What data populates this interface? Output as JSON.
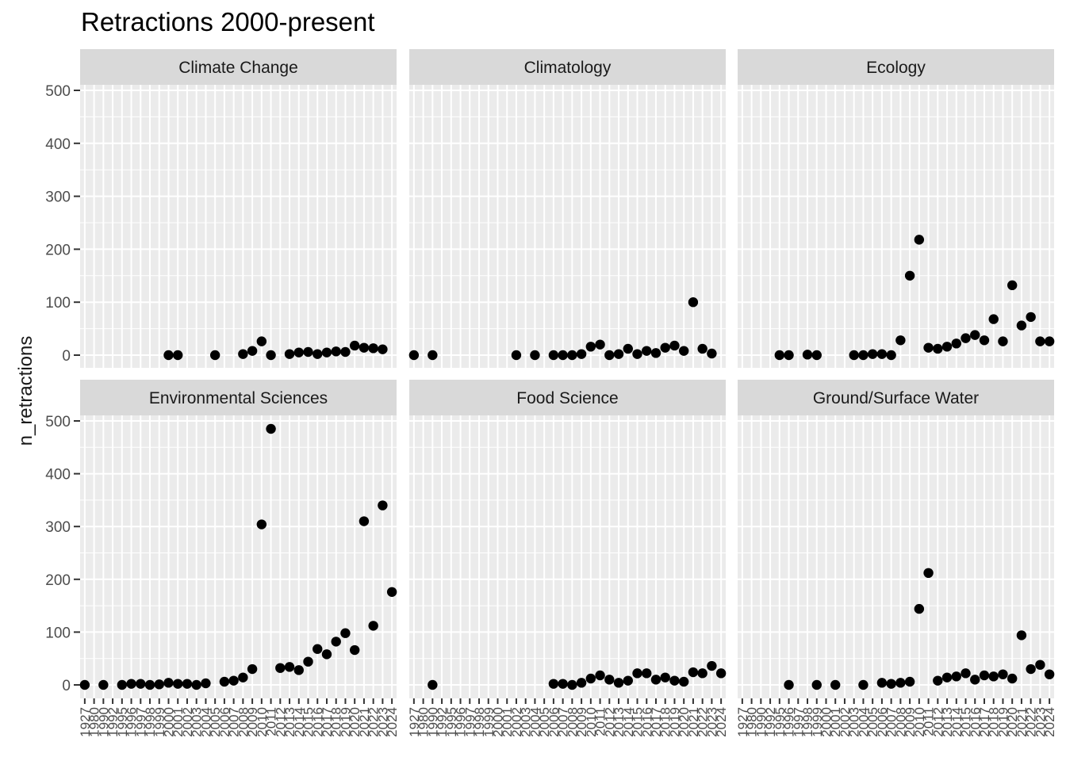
{
  "chart_data": {
    "type": "scatter",
    "title": "Retractions 2000-present",
    "ylabel": "n_retractions",
    "xlabel": "",
    "ylim": [
      0,
      500
    ],
    "y_ticks": [
      0,
      100,
      200,
      300,
      400,
      500
    ],
    "x_categories": [
      "1927",
      "1980",
      "1990",
      "1992",
      "1995",
      "1996",
      "1997",
      "1998",
      "1999",
      "2000",
      "2001",
      "2002",
      "2003",
      "2004",
      "2005",
      "2006",
      "2007",
      "2008",
      "2009",
      "2010",
      "2011",
      "2012",
      "2013",
      "2014",
      "2015",
      "2016",
      "2017",
      "2018",
      "2019",
      "2020",
      "2021",
      "2022",
      "2023",
      "2024"
    ],
    "grid": true,
    "point_color": "#000000",
    "panel_background": "#ebebeb",
    "strip_background": "#d9d9d9",
    "panels": [
      {
        "name": "Climate Change",
        "x": [
          "2000",
          "2001",
          "2005",
          "2008",
          "2009",
          "2010",
          "2011",
          "2013",
          "2014",
          "2015",
          "2016",
          "2017",
          "2018",
          "2019",
          "2020",
          "2021",
          "2022",
          "2023"
        ],
        "y": [
          0,
          0,
          0,
          2,
          8,
          26,
          0,
          2,
          5,
          6,
          2,
          5,
          7,
          6,
          18,
          14,
          13,
          11
        ]
      },
      {
        "name": "Climatology",
        "x": [
          "1927",
          "1990",
          "2002",
          "2004",
          "2006",
          "2007",
          "2008",
          "2009",
          "2010",
          "2011",
          "2012",
          "2013",
          "2014",
          "2015",
          "2016",
          "2017",
          "2018",
          "2019",
          "2020",
          "2021",
          "2022",
          "2023"
        ],
        "y": [
          0,
          0,
          0,
          0,
          0,
          0,
          0,
          2,
          16,
          20,
          0,
          2,
          12,
          2,
          8,
          4,
          14,
          18,
          8,
          100,
          12,
          3
        ]
      },
      {
        "name": "Ecology",
        "x": [
          "1995",
          "1996",
          "1998",
          "1999",
          "2003",
          "2004",
          "2005",
          "2006",
          "2007",
          "2008",
          "2009",
          "2010",
          "2011",
          "2012",
          "2013",
          "2014",
          "2015",
          "2016",
          "2017",
          "2018",
          "2019",
          "2020",
          "2021",
          "2022",
          "2023",
          "2024"
        ],
        "y": [
          0,
          0,
          1,
          0,
          0,
          0,
          2,
          2,
          0,
          28,
          150,
          218,
          14,
          12,
          16,
          22,
          32,
          38,
          28,
          68,
          26,
          132,
          56,
          72,
          26,
          26
        ]
      },
      {
        "name": "Environmental Sciences",
        "x": [
          "1927",
          "1990",
          "1995",
          "1996",
          "1997",
          "1998",
          "1999",
          "2000",
          "2001",
          "2002",
          "2003",
          "2004",
          "2006",
          "2007",
          "2008",
          "2009",
          "2010",
          "2011",
          "2012",
          "2013",
          "2014",
          "2015",
          "2016",
          "2017",
          "2018",
          "2019",
          "2020",
          "2021",
          "2022",
          "2023",
          "2024"
        ],
        "y": [
          0,
          0,
          0,
          2,
          2,
          0,
          1,
          4,
          2,
          2,
          0,
          3,
          6,
          8,
          14,
          30,
          304,
          485,
          32,
          34,
          28,
          44,
          68,
          58,
          82,
          98,
          66,
          310,
          112,
          340,
          176
        ]
      },
      {
        "name": "Food Science",
        "x": [
          "1990",
          "2006",
          "2007",
          "2008",
          "2009",
          "2010",
          "2011",
          "2012",
          "2013",
          "2014",
          "2015",
          "2016",
          "2017",
          "2018",
          "2019",
          "2020",
          "2021",
          "2022",
          "2023",
          "2024"
        ],
        "y": [
          0,
          2,
          2,
          0,
          4,
          12,
          18,
          10,
          4,
          8,
          22,
          22,
          10,
          14,
          8,
          6,
          24,
          22,
          36,
          22
        ]
      },
      {
        "name": "Ground/Surface Water",
        "x": [
          "1996",
          "1999",
          "2001",
          "2004",
          "2006",
          "2007",
          "2008",
          "2009",
          "2010",
          "2011",
          "2012",
          "2013",
          "2014",
          "2015",
          "2016",
          "2017",
          "2018",
          "2019",
          "2020",
          "2021",
          "2022",
          "2023",
          "2024"
        ],
        "y": [
          0,
          0,
          0,
          0,
          4,
          2,
          4,
          6,
          144,
          212,
          8,
          14,
          16,
          22,
          10,
          18,
          16,
          20,
          12,
          94,
          30,
          38,
          20
        ]
      }
    ]
  }
}
